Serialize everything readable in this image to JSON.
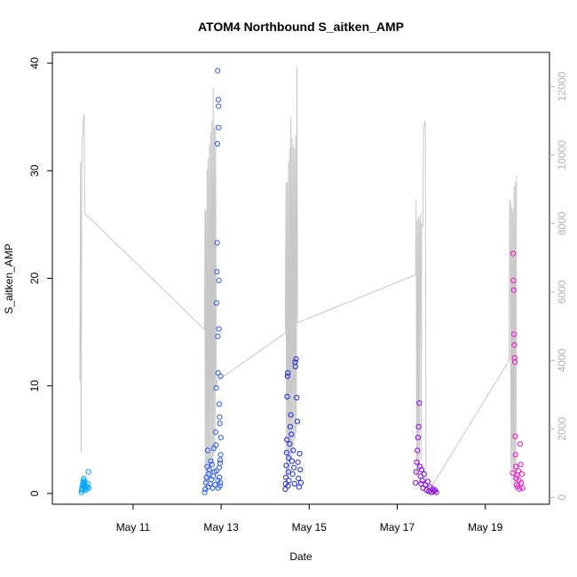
{
  "chart_data": {
    "type": "scatter",
    "title": "ATOM4 Northbound S_aitken_AMP",
    "xlabel": "Date",
    "ylabel": "S_aitken_AMP",
    "xlim": [
      "2025-05-09 04:00",
      "2025-05-20 11:00"
    ],
    "ylim": [
      -1.0,
      41.0
    ],
    "y2lim": [
      -200,
      13000
    ],
    "x_ticks": [
      {
        "x": "2025-05-11 00:00",
        "label": "May 11"
      },
      {
        "x": "2025-05-13 00:00",
        "label": "May 13"
      },
      {
        "x": "2025-05-15 00:00",
        "label": "May 15"
      },
      {
        "x": "2025-05-17 00:00",
        "label": "May 17"
      },
      {
        "x": "2025-05-19 00:00",
        "label": "May 19"
      }
    ],
    "y_ticks": [
      0,
      10,
      20,
      30,
      40
    ],
    "y2_ticks": [
      0,
      2000,
      4000,
      6000,
      8000,
      10000,
      12000
    ],
    "grid": false,
    "legend": "none",
    "colors": {
      "line": "#c8c8c8",
      "axis": "#000000",
      "right_axis": "#b3b3b3"
    },
    "series": [
      {
        "color": "#00a6ff",
        "points": [
          [
            "2025-05-09 19:50",
            0.1
          ],
          [
            "2025-05-09 20:00",
            0.3
          ],
          [
            "2025-05-09 20:10",
            0.5
          ],
          [
            "2025-05-09 20:20",
            0.7
          ],
          [
            "2025-05-09 20:30",
            0.4
          ],
          [
            "2025-05-09 20:40",
            1.0
          ],
          [
            "2025-05-09 20:50",
            1.2
          ],
          [
            "2025-05-09 21:00",
            0.8
          ],
          [
            "2025-05-09 21:10",
            1.4
          ],
          [
            "2025-05-09 21:20",
            0.6
          ],
          [
            "2025-05-09 21:30",
            0.9
          ],
          [
            "2025-05-09 21:40",
            1.1
          ],
          [
            "2025-05-09 21:50",
            0.5
          ],
          [
            "2025-05-09 22:00",
            0.3
          ],
          [
            "2025-05-09 22:20",
            0.7
          ],
          [
            "2025-05-09 22:40",
            0.4
          ],
          [
            "2025-05-09 23:00",
            0.6
          ],
          [
            "2025-05-09 23:20",
            0.9
          ],
          [
            "2025-05-09 23:40",
            2.0
          ],
          [
            "2025-05-09 23:50",
            0.5
          ]
        ]
      },
      {
        "color": "#2b5cf2",
        "points": [
          [
            "2025-05-12 15:00",
            0.1
          ],
          [
            "2025-05-12 15:20",
            0.4
          ],
          [
            "2025-05-12 15:40",
            1.0
          ],
          [
            "2025-05-12 16:00",
            1.5
          ],
          [
            "2025-05-12 16:20",
            2.5
          ],
          [
            "2025-05-12 16:40",
            4.0
          ],
          [
            "2025-05-12 17:00",
            0.6
          ],
          [
            "2025-05-12 17:20",
            1.8
          ],
          [
            "2025-05-12 17:40",
            2.2
          ],
          [
            "2025-05-12 18:00",
            0.9
          ],
          [
            "2025-05-12 18:20",
            3.0
          ],
          [
            "2025-05-12 18:40",
            1.3
          ],
          [
            "2025-05-12 19:00",
            2.7
          ],
          [
            "2025-05-12 19:20",
            0.5
          ],
          [
            "2025-05-12 19:40",
            1.6
          ],
          [
            "2025-05-12 20:00",
            4.2
          ],
          [
            "2025-05-12 20:20",
            2.0
          ],
          [
            "2025-05-12 20:40",
            0.8
          ],
          [
            "2025-05-12 21:00",
            5.7
          ],
          [
            "2025-05-12 21:20",
            9.8
          ],
          [
            "2025-05-12 21:30",
            17.7
          ],
          [
            "2025-05-12 21:40",
            20.6
          ],
          [
            "2025-05-12 21:50",
            23.3
          ],
          [
            "2025-05-12 22:00",
            32.5
          ],
          [
            "2025-05-12 22:05",
            39.3
          ],
          [
            "2025-05-12 22:10",
            14.6
          ],
          [
            "2025-05-12 22:20",
            11.2
          ],
          [
            "2025-05-12 22:30",
            36.6
          ],
          [
            "2025-05-12 22:35",
            36.0
          ],
          [
            "2025-05-12 22:40",
            34.0
          ],
          [
            "2025-05-12 22:45",
            19.8
          ],
          [
            "2025-05-12 22:50",
            15.3
          ],
          [
            "2025-05-12 23:00",
            8.3
          ],
          [
            "2025-05-12 23:10",
            7.1
          ],
          [
            "2025-05-12 23:20",
            6.5
          ],
          [
            "2025-05-12 23:30",
            3.1
          ],
          [
            "2025-05-12 23:40",
            10.9
          ],
          [
            "2025-05-12 23:50",
            5.2
          ],
          [
            "2025-05-12 22:15",
            1.2
          ],
          [
            "2025-05-12 22:25",
            0.5
          ],
          [
            "2025-05-12 22:55",
            2.4
          ],
          [
            "2025-05-12 23:05",
            1.5
          ],
          [
            "2025-05-12 23:15",
            0.7
          ],
          [
            "2025-05-12 23:25",
            2.8
          ],
          [
            "2025-05-12 23:35",
            1.0
          ],
          [
            "2025-05-12 23:45",
            3.6
          ],
          [
            "2025-05-12 21:10",
            4.5
          ],
          [
            "2025-05-12 21:25",
            2.1
          ]
        ]
      },
      {
        "color": "#1f2bdc",
        "points": [
          [
            "2025-05-14 11:00",
            0.4
          ],
          [
            "2025-05-14 11:10",
            0.9
          ],
          [
            "2025-05-14 11:20",
            1.5
          ],
          [
            "2025-05-14 11:30",
            2.6
          ],
          [
            "2025-05-14 11:40",
            3.8
          ],
          [
            "2025-05-14 11:50",
            5.0
          ],
          [
            "2025-05-14 12:00",
            9.0
          ],
          [
            "2025-05-14 12:10",
            10.9
          ],
          [
            "2025-05-14 12:20",
            11.2
          ],
          [
            "2025-05-14 12:30",
            0.7
          ],
          [
            "2025-05-14 12:40",
            2.0
          ],
          [
            "2025-05-14 12:50",
            3.3
          ],
          [
            "2025-05-14 13:00",
            1.2
          ],
          [
            "2025-05-14 13:20",
            4.6
          ],
          [
            "2025-05-14 13:40",
            6.2
          ],
          [
            "2025-05-14 14:00",
            7.3
          ],
          [
            "2025-05-14 14:20",
            5.5
          ],
          [
            "2025-05-14 14:40",
            3.0
          ],
          [
            "2025-05-14 15:00",
            1.8
          ],
          [
            "2025-05-14 15:20",
            4.0
          ],
          [
            "2025-05-14 15:40",
            2.4
          ],
          [
            "2025-05-14 16:00",
            0.9
          ],
          [
            "2025-05-14 16:20",
            12.2
          ],
          [
            "2025-05-14 16:30",
            11.8
          ],
          [
            "2025-05-14 16:50",
            12.5
          ],
          [
            "2025-05-14 17:10",
            8.9
          ],
          [
            "2025-05-14 17:30",
            6.7
          ],
          [
            "2025-05-14 17:50",
            2.9
          ],
          [
            "2025-05-14 18:10",
            1.4
          ],
          [
            "2025-05-14 18:30",
            0.6
          ],
          [
            "2025-05-14 18:50",
            3.7
          ],
          [
            "2025-05-14 19:10",
            2.2
          ],
          [
            "2025-05-14 19:30",
            1.0
          ]
        ]
      },
      {
        "color": "#8a00e6",
        "points": [
          [
            "2025-05-17 10:00",
            1.0
          ],
          [
            "2025-05-17 10:20",
            2.0
          ],
          [
            "2025-05-17 10:40",
            2.9
          ],
          [
            "2025-05-17 11:00",
            4.0
          ],
          [
            "2025-05-17 11:20",
            5.2
          ],
          [
            "2025-05-17 11:40",
            6.2
          ],
          [
            "2025-05-17 12:00",
            8.4
          ],
          [
            "2025-05-17 12:20",
            2.5
          ],
          [
            "2025-05-17 12:40",
            1.6
          ],
          [
            "2025-05-17 13:00",
            0.9
          ],
          [
            "2025-05-17 13:20",
            2.2
          ],
          [
            "2025-05-17 13:40",
            1.2
          ],
          [
            "2025-05-17 14:00",
            0.5
          ],
          [
            "2025-05-17 14:40",
            1.8
          ],
          [
            "2025-05-17 15:20",
            0.8
          ],
          [
            "2025-05-17 16:00",
            0.3
          ],
          [
            "2025-05-17 16:40",
            1.1
          ],
          [
            "2025-05-17 17:20",
            0.2
          ],
          [
            "2025-05-17 18:00",
            0.6
          ],
          [
            "2025-05-17 18:40",
            0.1
          ],
          [
            "2025-05-17 19:20",
            0.4
          ],
          [
            "2025-05-17 20:00",
            0.2
          ],
          [
            "2025-05-17 20:40",
            0.3
          ],
          [
            "2025-05-17 21:20",
            0.1
          ]
        ]
      },
      {
        "color": "#f210c8",
        "points": [
          [
            "2025-05-19 15:00",
            1.9
          ],
          [
            "2025-05-19 15:10",
            22.3
          ],
          [
            "2025-05-19 15:20",
            19.8
          ],
          [
            "2025-05-19 15:30",
            18.9
          ],
          [
            "2025-05-19 15:40",
            14.8
          ],
          [
            "2025-05-19 15:50",
            13.8
          ],
          [
            "2025-05-19 16:00",
            12.6
          ],
          [
            "2025-05-19 16:10",
            12.2
          ],
          [
            "2025-05-19 16:20",
            5.3
          ],
          [
            "2025-05-19 16:30",
            3.6
          ],
          [
            "2025-05-19 16:40",
            2.5
          ],
          [
            "2025-05-19 16:50",
            1.4
          ],
          [
            "2025-05-19 17:00",
            0.8
          ],
          [
            "2025-05-19 17:20",
            1.7
          ],
          [
            "2025-05-19 17:40",
            0.6
          ],
          [
            "2025-05-19 18:00",
            2.1
          ],
          [
            "2025-05-19 18:20",
            1.2
          ],
          [
            "2025-05-19 18:40",
            0.4
          ],
          [
            "2025-05-19 19:00",
            4.6
          ],
          [
            "2025-05-19 19:20",
            2.7
          ],
          [
            "2025-05-19 19:40",
            1.0
          ],
          [
            "2025-05-19 20:00",
            1.8
          ],
          [
            "2025-05-19 20:20",
            0.5
          ]
        ]
      }
    ],
    "overlay_line": {
      "color": "#c8c8c8",
      "axis": "right",
      "points": [
        [
          "2025-05-09 19:00",
          3400
        ],
        [
          "2025-05-09 19:20",
          9800
        ],
        [
          "2025-05-09 19:40",
          1300
        ],
        [
          "2025-05-09 20:00",
          9800
        ],
        [
          "2025-05-09 20:20",
          10500
        ],
        [
          "2025-05-09 20:40",
          10600
        ],
        [
          "2025-05-09 21:00",
          11100
        ],
        [
          "2025-05-09 21:20",
          11200
        ],
        [
          "2025-05-09 21:40",
          8300
        ],
        [
          "2025-05-12 15:00",
          4900
        ],
        [
          "2025-05-12 15:10",
          8400
        ],
        [
          "2025-05-12 15:20",
          300
        ],
        [
          "2025-05-12 15:40",
          8400
        ],
        [
          "2025-05-12 16:00",
          200
        ],
        [
          "2025-05-12 16:20",
          9600
        ],
        [
          "2025-05-12 16:40",
          400
        ],
        [
          "2025-05-12 17:00",
          9900
        ],
        [
          "2025-05-12 17:20",
          600
        ],
        [
          "2025-05-12 17:40",
          10300
        ],
        [
          "2025-05-12 18:00",
          500
        ],
        [
          "2025-05-12 18:20",
          10700
        ],
        [
          "2025-05-12 18:40",
          800
        ],
        [
          "2025-05-12 19:00",
          11000
        ],
        [
          "2025-05-12 19:20",
          1000
        ],
        [
          "2025-05-12 19:40",
          12000
        ],
        [
          "2025-05-12 20:00",
          1200
        ],
        [
          "2025-05-12 20:20",
          10800
        ],
        [
          "2025-05-12 20:40",
          1300
        ],
        [
          "2025-05-12 21:00",
          10900
        ],
        [
          "2025-05-12 21:20",
          3200
        ],
        [
          "2025-05-12 21:40",
          3400
        ],
        [
          "2025-05-14 11:00",
          4800
        ],
        [
          "2025-05-14 11:20",
          9200
        ],
        [
          "2025-05-14 11:40",
          400
        ],
        [
          "2025-05-14 12:00",
          9200
        ],
        [
          "2025-05-14 12:20",
          500
        ],
        [
          "2025-05-14 12:40",
          9800
        ],
        [
          "2025-05-14 13:00",
          700
        ],
        [
          "2025-05-14 13:20",
          10200
        ],
        [
          "2025-05-14 13:40",
          900
        ],
        [
          "2025-05-14 14:00",
          11100
        ],
        [
          "2025-05-14 14:20",
          1100
        ],
        [
          "2025-05-14 14:40",
          10500
        ],
        [
          "2025-05-14 15:00",
          1300
        ],
        [
          "2025-05-14 15:20",
          10300
        ],
        [
          "2025-05-14 15:40",
          1500
        ],
        [
          "2025-05-14 16:00",
          10200
        ],
        [
          "2025-05-14 16:20",
          1700
        ],
        [
          "2025-05-14 16:40",
          10600
        ],
        [
          "2025-05-14 17:00",
          1900
        ],
        [
          "2025-05-14 17:20",
          12600
        ],
        [
          "2025-05-14 17:40",
          5100
        ],
        [
          "2025-05-17 10:00",
          6500
        ],
        [
          "2025-05-17 10:20",
          8700
        ],
        [
          "2025-05-17 10:40",
          600
        ],
        [
          "2025-05-17 11:00",
          8100
        ],
        [
          "2025-05-17 11:20",
          700
        ],
        [
          "2025-05-17 11:40",
          8200
        ],
        [
          "2025-05-17 12:00",
          900
        ],
        [
          "2025-05-17 12:20",
          8000
        ],
        [
          "2025-05-17 12:40",
          8300
        ],
        [
          "2025-05-17 13:00",
          1100
        ],
        [
          "2025-05-17 13:20",
          8000
        ],
        [
          "2025-05-17 14:00",
          7900
        ],
        [
          "2025-05-17 14:20",
          10700
        ],
        [
          "2025-05-17 14:40",
          10800
        ],
        [
          "2025-05-17 15:00",
          11000
        ],
        [
          "2025-05-17 15:20",
          10900
        ],
        [
          "2025-05-17 15:40",
          200
        ],
        [
          "2025-05-17 16:20",
          100
        ],
        [
          "2025-05-19 13:00",
          4000
        ],
        [
          "2025-05-19 13:20",
          8600
        ],
        [
          "2025-05-19 13:40",
          8700
        ],
        [
          "2025-05-19 14:00",
          800
        ],
        [
          "2025-05-19 14:20",
          8500
        ],
        [
          "2025-05-19 14:40",
          400
        ],
        [
          "2025-05-19 15:00",
          8400
        ],
        [
          "2025-05-19 15:20",
          500
        ],
        [
          "2025-05-19 15:40",
          9100
        ],
        [
          "2025-05-19 16:00",
          200
        ],
        [
          "2025-05-19 16:20",
          9200
        ],
        [
          "2025-05-19 16:40",
          300
        ],
        [
          "2025-05-19 17:00",
          9300
        ],
        [
          "2025-05-19 17:20",
          9400
        ]
      ]
    }
  }
}
